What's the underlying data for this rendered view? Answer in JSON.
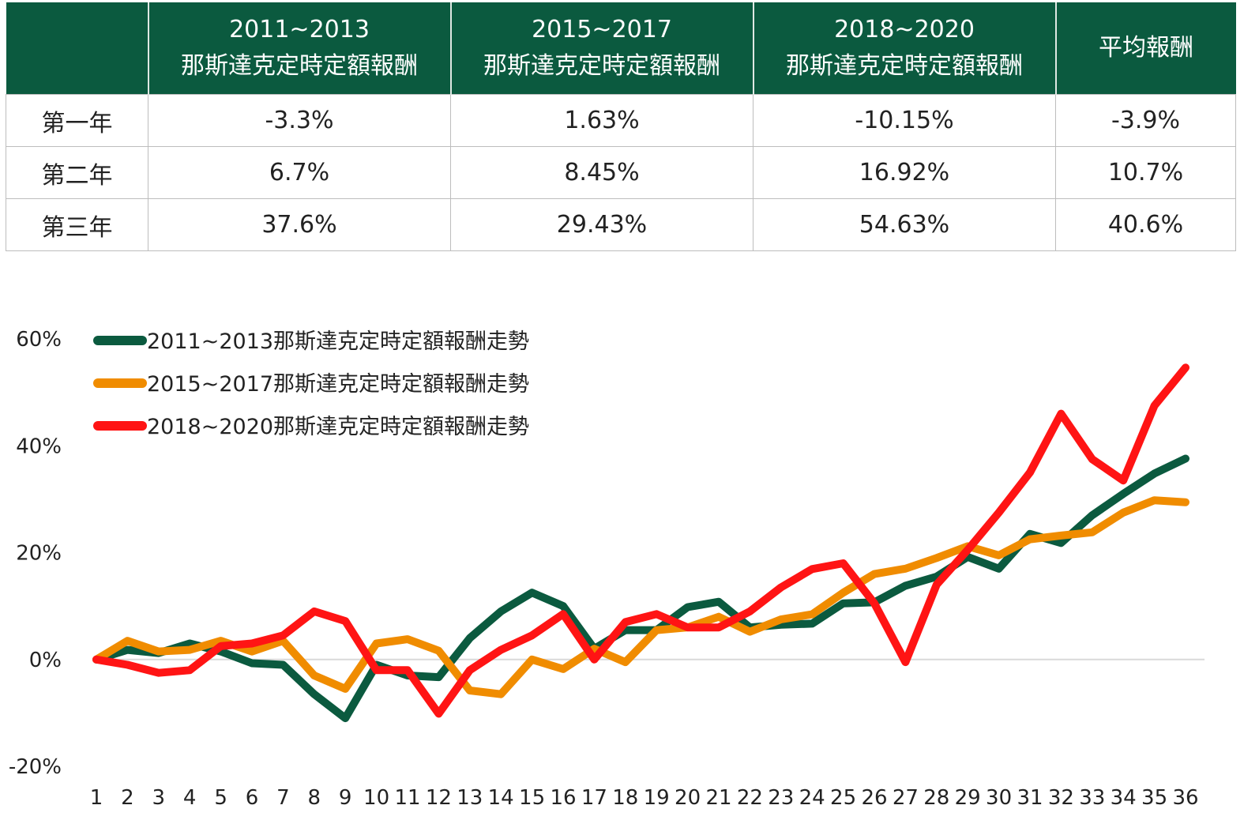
{
  "table": {
    "headers": [
      {
        "lines": [
          "",
          ""
        ]
      },
      {
        "lines": [
          "2011~2013",
          "那斯達克定時定額報酬"
        ]
      },
      {
        "lines": [
          "2015~2017",
          "那斯達克定時定額報酬"
        ]
      },
      {
        "lines": [
          "2018~2020",
          "那斯達克定時定額報酬"
        ]
      },
      {
        "lines": [
          "平均報酬",
          ""
        ]
      }
    ],
    "rows": [
      {
        "label": "第一年",
        "values": [
          "-3.3%",
          "1.63%",
          "-10.15%",
          "-3.9%"
        ]
      },
      {
        "label": "第二年",
        "values": [
          "6.7%",
          "8.45%",
          "16.92%",
          "10.7%"
        ]
      },
      {
        "label": "第三年",
        "values": [
          "37.6%",
          "29.43%",
          "54.63%",
          "40.6%"
        ]
      }
    ]
  },
  "chart_data": {
    "type": "line",
    "x": [
      1,
      2,
      3,
      4,
      5,
      6,
      7,
      8,
      9,
      10,
      11,
      12,
      13,
      14,
      15,
      16,
      17,
      18,
      19,
      20,
      21,
      22,
      23,
      24,
      25,
      26,
      27,
      28,
      29,
      30,
      31,
      32,
      33,
      34,
      35,
      36
    ],
    "y_ticks": [
      "60%",
      "40%",
      "20%",
      "0%",
      "-20%"
    ],
    "ylim": [
      -20,
      60
    ],
    "grid": false,
    "legend_position": "top-left",
    "series": [
      {
        "name": "2011~2013那斯達克定時定額報酬走勢",
        "color": "#0b5a3f",
        "values": [
          0,
          1.8,
          1.2,
          3,
          1.5,
          -0.7,
          -1,
          -6.5,
          -11,
          -1,
          -3,
          -3.3,
          4,
          9,
          12.5,
          10,
          2,
          5.5,
          5.5,
          9.8,
          10.8,
          6,
          6.5,
          6.7,
          10.5,
          10.7,
          13.8,
          15.5,
          19.2,
          17,
          23.5,
          21.8,
          27,
          31,
          34.8,
          37.6
        ]
      },
      {
        "name": "2015~2017那斯達克定時定額報酬走勢",
        "color": "#f08c00",
        "values": [
          0,
          3.5,
          1.5,
          1.8,
          3.5,
          1.5,
          3.5,
          -3,
          -5.5,
          3,
          3.8,
          1.63,
          -5.8,
          -6.5,
          0,
          -1.8,
          2,
          -0.5,
          5.5,
          6,
          8,
          5.2,
          7.5,
          8.45,
          12.5,
          16,
          17,
          19,
          21.2,
          19.5,
          22.5,
          23.2,
          23.8,
          27.5,
          29.8,
          29.43
        ]
      },
      {
        "name": "2018~2020那斯達克定時定額報酬走勢",
        "color": "#ff1414",
        "values": [
          0,
          -1,
          -2.5,
          -2,
          2.5,
          3,
          4.5,
          9,
          7.2,
          -2,
          -2,
          -10.15,
          -2,
          1.8,
          4.5,
          8.5,
          0,
          7,
          8.5,
          6,
          6,
          9,
          13.5,
          16.92,
          18,
          10.5,
          -0.5,
          14,
          20.5,
          27.5,
          35,
          46,
          37.5,
          33.5,
          47.5,
          54.63
        ]
      }
    ]
  }
}
